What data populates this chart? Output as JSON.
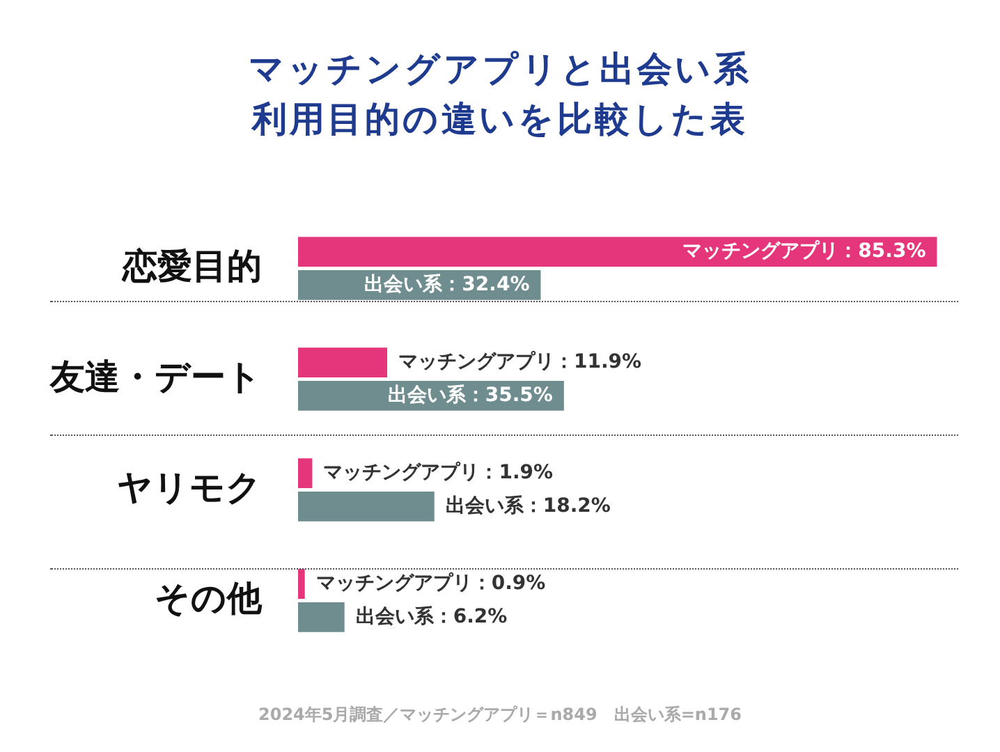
{
  "chart_data": {
    "type": "bar",
    "orientation": "horizontal",
    "title": "マッチングアプリと出会い系利用目的の違いを比較した表",
    "categories": [
      "恋愛目的",
      "友達・デート",
      "ヤリモク",
      "その他"
    ],
    "series": [
      {
        "color": "#e5357b",
        "values": [
          85.3,
          11.9,
          1.9,
          0.9
        ],
        "value_labels": [
          "マッチングアプリ：85.3%",
          "マッチングアプリ：11.9%",
          "マッチングアプリ：1.9%",
          "マッチングアプリ：0.9%"
        ]
      },
      {
        "color": "#6f8c8e",
        "values": [
          32.4,
          35.5,
          18.2,
          6.2
        ],
        "value_labels": [
          "出会い系：32.4%",
          "出会い系：35.5%",
          "出会い系：18.2%",
          "出会い系：6.2%"
        ]
      }
    ],
    "grid": false,
    "legend": false,
    "annotations": [
      "2024年5月調査／マッチングアプリ＝n849　出会い系=n176"
    ]
  }
}
